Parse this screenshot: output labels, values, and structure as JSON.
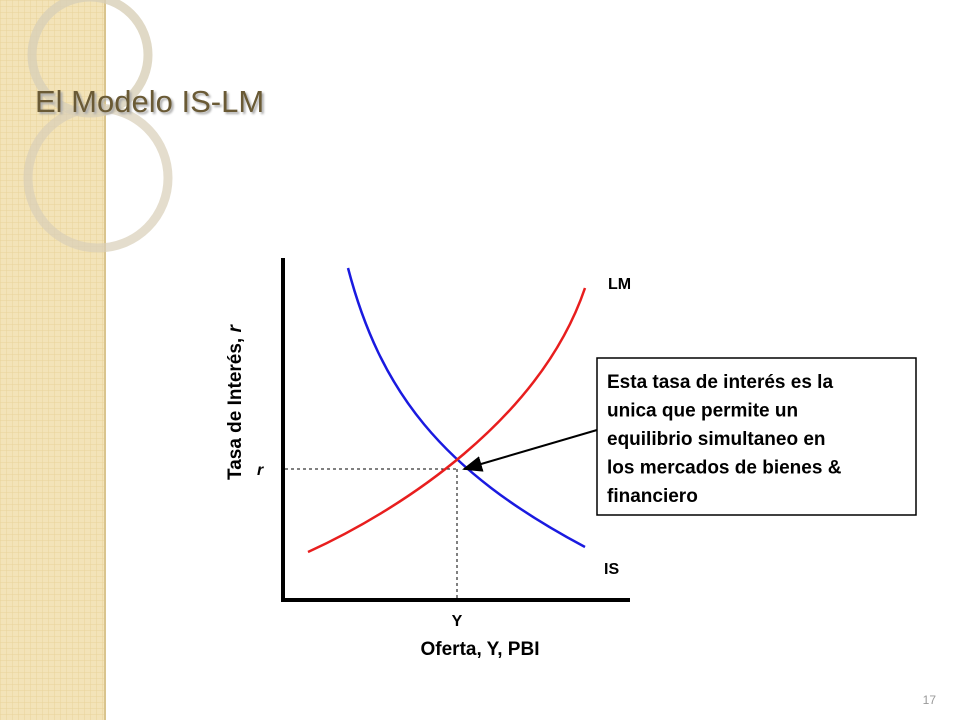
{
  "title": "El Modelo IS-LM",
  "diagram": {
    "y_axis_label": {
      "text": "Tasa de Interés,",
      "symbol": "r"
    },
    "x_axis_label": "Oferta, Y, PBI",
    "r_marker": "r",
    "y_marker": "Y",
    "curves": [
      {
        "label": "LM",
        "color": "#e81e1e"
      },
      {
        "label": "IS",
        "color": "#1a1ae0"
      }
    ],
    "annotation": [
      "Esta tasa de interés es la",
      "unica que permite un",
      "equilibrio simultaneo en",
      "los mercados de bienes &",
      "financiero"
    ]
  },
  "page_number": "17"
}
